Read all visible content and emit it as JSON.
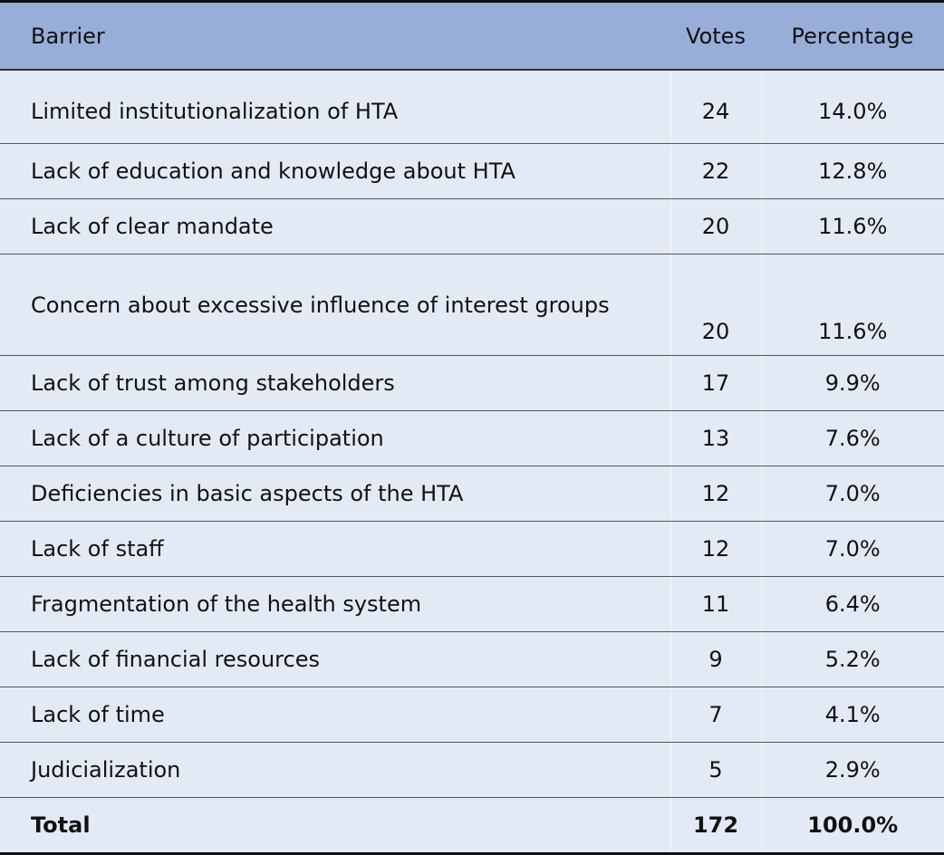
{
  "header": {
    "barrier": "Barrier",
    "votes": "Votes",
    "percentage": "Percentage"
  },
  "rows": [
    {
      "barrier": "Limited institutionalization of HTA",
      "votes": "24",
      "percentage": "14.0%"
    },
    {
      "barrier": "Lack of education and knowledge about HTA",
      "votes": "22",
      "percentage": "12.8%"
    },
    {
      "barrier": "Lack of clear mandate",
      "votes": "20",
      "percentage": "11.6%"
    },
    {
      "barrier": "Concern about excessive influence of interest groups",
      "votes": "20",
      "percentage": "11.6%"
    },
    {
      "barrier": "Lack of trust among stakeholders",
      "votes": "17",
      "percentage": "9.9%"
    },
    {
      "barrier": "Lack of a culture of participation",
      "votes": "13",
      "percentage": "7.6%"
    },
    {
      "barrier": "Deficiencies in basic aspects of the HTA",
      "votes": "12",
      "percentage": "7.0%"
    },
    {
      "barrier": "Lack of staff",
      "votes": "12",
      "percentage": "7.0%"
    },
    {
      "barrier": "Fragmentation of the health system",
      "votes": "11",
      "percentage": "6.4%"
    },
    {
      "barrier": "Lack of financial resources",
      "votes": "9",
      "percentage": "5.2%"
    },
    {
      "barrier": "Lack of time",
      "votes": "7",
      "percentage": "4.1%"
    },
    {
      "barrier": "Judicialization",
      "votes": "5",
      "percentage": "2.9%"
    }
  ],
  "total": {
    "label": "Total",
    "votes": "172",
    "percentage": "100.0%"
  },
  "colors": {
    "header_bg": "#98AED8",
    "row_bg": "#E4EAF5"
  }
}
